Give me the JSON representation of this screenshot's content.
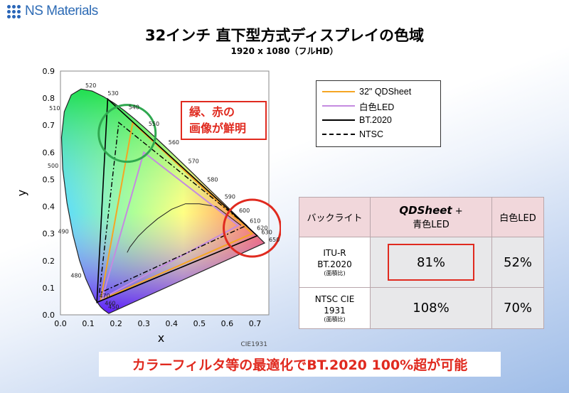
{
  "logo": {
    "text": "NS Materials"
  },
  "header": {
    "title": "32インチ 直下型方式ディスプレイの色域",
    "subtitle": "1920 x 1080（フルHD）"
  },
  "callout": {
    "line1": "緑、赤の",
    "line2": "画像が鮮明"
  },
  "legend": {
    "items": [
      {
        "label": "32\" QDSheet",
        "color": "#f5a623",
        "style": "solid"
      },
      {
        "label": "白色LED",
        "color": "#c48be0",
        "style": "solid"
      },
      {
        "label": "BT.2020",
        "color": "#000000",
        "style": "solid"
      },
      {
        "label": "NTSC",
        "color": "#000000",
        "style": "dashdot"
      }
    ]
  },
  "table": {
    "header": {
      "col1": "バックライト",
      "col2_brand": "QDSheet",
      "col2_plus": " +",
      "col2_line2": "青色LED",
      "col3": "白色LED"
    },
    "rows": [
      {
        "label1": "ITU-R",
        "label2": "BT.2020",
        "note": "(面積比)",
        "qd": "81%",
        "led": "52%"
      },
      {
        "label1": "NTSC CIE",
        "label2": "1931",
        "note": "(面積比)",
        "qd": "108%",
        "led": "70%"
      }
    ]
  },
  "banner": {
    "text": "カラーフィルタ等の最適化でBT.2020 100%超が可能"
  },
  "chart_data": {
    "type": "scatter",
    "xlabel": "x",
    "ylabel": "y",
    "xlim": [
      0.0,
      0.75
    ],
    "ylim": [
      0.0,
      0.9
    ],
    "x_ticks": [
      "0.0",
      "0.1",
      "0.2",
      "0.3",
      "0.4",
      "0.5",
      "0.6",
      "0.7"
    ],
    "y_ticks": [
      "0.0",
      "0.1",
      "0.2",
      "0.3",
      "0.4",
      "0.5",
      "0.6",
      "0.7",
      "0.8",
      "0.9"
    ],
    "source_label": "CIE1931",
    "locus": [
      [
        0.1741,
        0.005
      ],
      [
        0.1566,
        0.0177
      ],
      [
        0.144,
        0.0297
      ],
      [
        0.1241,
        0.0578
      ],
      [
        0.0913,
        0.1327
      ],
      [
        0.0687,
        0.2007
      ],
      [
        0.0454,
        0.295
      ],
      [
        0.0235,
        0.4127
      ],
      [
        0.0082,
        0.5384
      ],
      [
        0.0039,
        0.6548
      ],
      [
        0.0139,
        0.7502
      ],
      [
        0.0389,
        0.812
      ],
      [
        0.0743,
        0.8338
      ],
      [
        0.1142,
        0.8262
      ],
      [
        0.1547,
        0.8059
      ],
      [
        0.1929,
        0.7816
      ],
      [
        0.2296,
        0.7543
      ],
      [
        0.2658,
        0.7243
      ],
      [
        0.3016,
        0.6923
      ],
      [
        0.3373,
        0.6589
      ],
      [
        0.3731,
        0.6245
      ],
      [
        0.4087,
        0.5896
      ],
      [
        0.4441,
        0.5547
      ],
      [
        0.4788,
        0.5202
      ],
      [
        0.5125,
        0.4866
      ],
      [
        0.5448,
        0.4544
      ],
      [
        0.5752,
        0.4242
      ],
      [
        0.6029,
        0.3965
      ],
      [
        0.627,
        0.3725
      ],
      [
        0.6482,
        0.3514
      ],
      [
        0.6658,
        0.334
      ],
      [
        0.6915,
        0.3083
      ],
      [
        0.7079,
        0.292
      ],
      [
        0.7347,
        0.2653
      ]
    ],
    "wavelength_labels": [
      {
        "nm": "450",
        "x": 0.1566,
        "y": 0.0177
      },
      {
        "nm": "460",
        "x": 0.144,
        "y": 0.0297
      },
      {
        "nm": "470",
        "x": 0.1241,
        "y": 0.0578
      },
      {
        "nm": "480",
        "x": 0.0913,
        "y": 0.1327
      },
      {
        "nm": "490",
        "x": 0.0454,
        "y": 0.295
      },
      {
        "nm": "500",
        "x": 0.0082,
        "y": 0.5384
      },
      {
        "nm": "510",
        "x": 0.0139,
        "y": 0.7502
      },
      {
        "nm": "520",
        "x": 0.0743,
        "y": 0.8338
      },
      {
        "nm": "530",
        "x": 0.1547,
        "y": 0.8059
      },
      {
        "nm": "540",
        "x": 0.2296,
        "y": 0.7543
      },
      {
        "nm": "550",
        "x": 0.3016,
        "y": 0.6923
      },
      {
        "nm": "560",
        "x": 0.3731,
        "y": 0.6245
      },
      {
        "nm": "570",
        "x": 0.4441,
        "y": 0.5547
      },
      {
        "nm": "580",
        "x": 0.5125,
        "y": 0.4866
      },
      {
        "nm": "590",
        "x": 0.5752,
        "y": 0.4242
      },
      {
        "nm": "600",
        "x": 0.627,
        "y": 0.3725
      },
      {
        "nm": "610",
        "x": 0.6658,
        "y": 0.334
      },
      {
        "nm": "620",
        "x": 0.6915,
        "y": 0.3083
      },
      {
        "nm": "630",
        "x": 0.7079,
        "y": 0.292
      },
      {
        "nm": "650",
        "x": 0.7347,
        "y": 0.2653
      }
    ],
    "series": [
      {
        "name": "32\" QDSheet",
        "points": [
          [
            0.69,
            0.3
          ],
          [
            0.26,
            0.71
          ],
          [
            0.145,
            0.055
          ]
        ]
      },
      {
        "name": "白色LED",
        "points": [
          [
            0.64,
            0.33
          ],
          [
            0.3,
            0.6
          ],
          [
            0.15,
            0.06
          ]
        ]
      },
      {
        "name": "BT.2020",
        "points": [
          [
            0.708,
            0.292
          ],
          [
            0.17,
            0.797
          ],
          [
            0.131,
            0.046
          ]
        ]
      },
      {
        "name": "NTSC",
        "points": [
          [
            0.67,
            0.33
          ],
          [
            0.21,
            0.71
          ],
          [
            0.14,
            0.08
          ]
        ]
      }
    ],
    "planckian": [
      [
        0.65,
        0.33
      ],
      [
        0.56,
        0.4
      ],
      [
        0.5,
        0.41
      ],
      [
        0.45,
        0.41
      ],
      [
        0.4,
        0.39
      ],
      [
        0.35,
        0.355
      ],
      [
        0.31,
        0.32
      ],
      [
        0.28,
        0.29
      ],
      [
        0.25,
        0.25
      ],
      [
        0.24,
        0.23
      ]
    ],
    "highlight_circles": [
      {
        "cx": 0.24,
        "cy": 0.67,
        "color": "#2fa84f"
      },
      {
        "cx": 0.69,
        "cy": 0.32,
        "color": "#e02a1f"
      }
    ]
  }
}
